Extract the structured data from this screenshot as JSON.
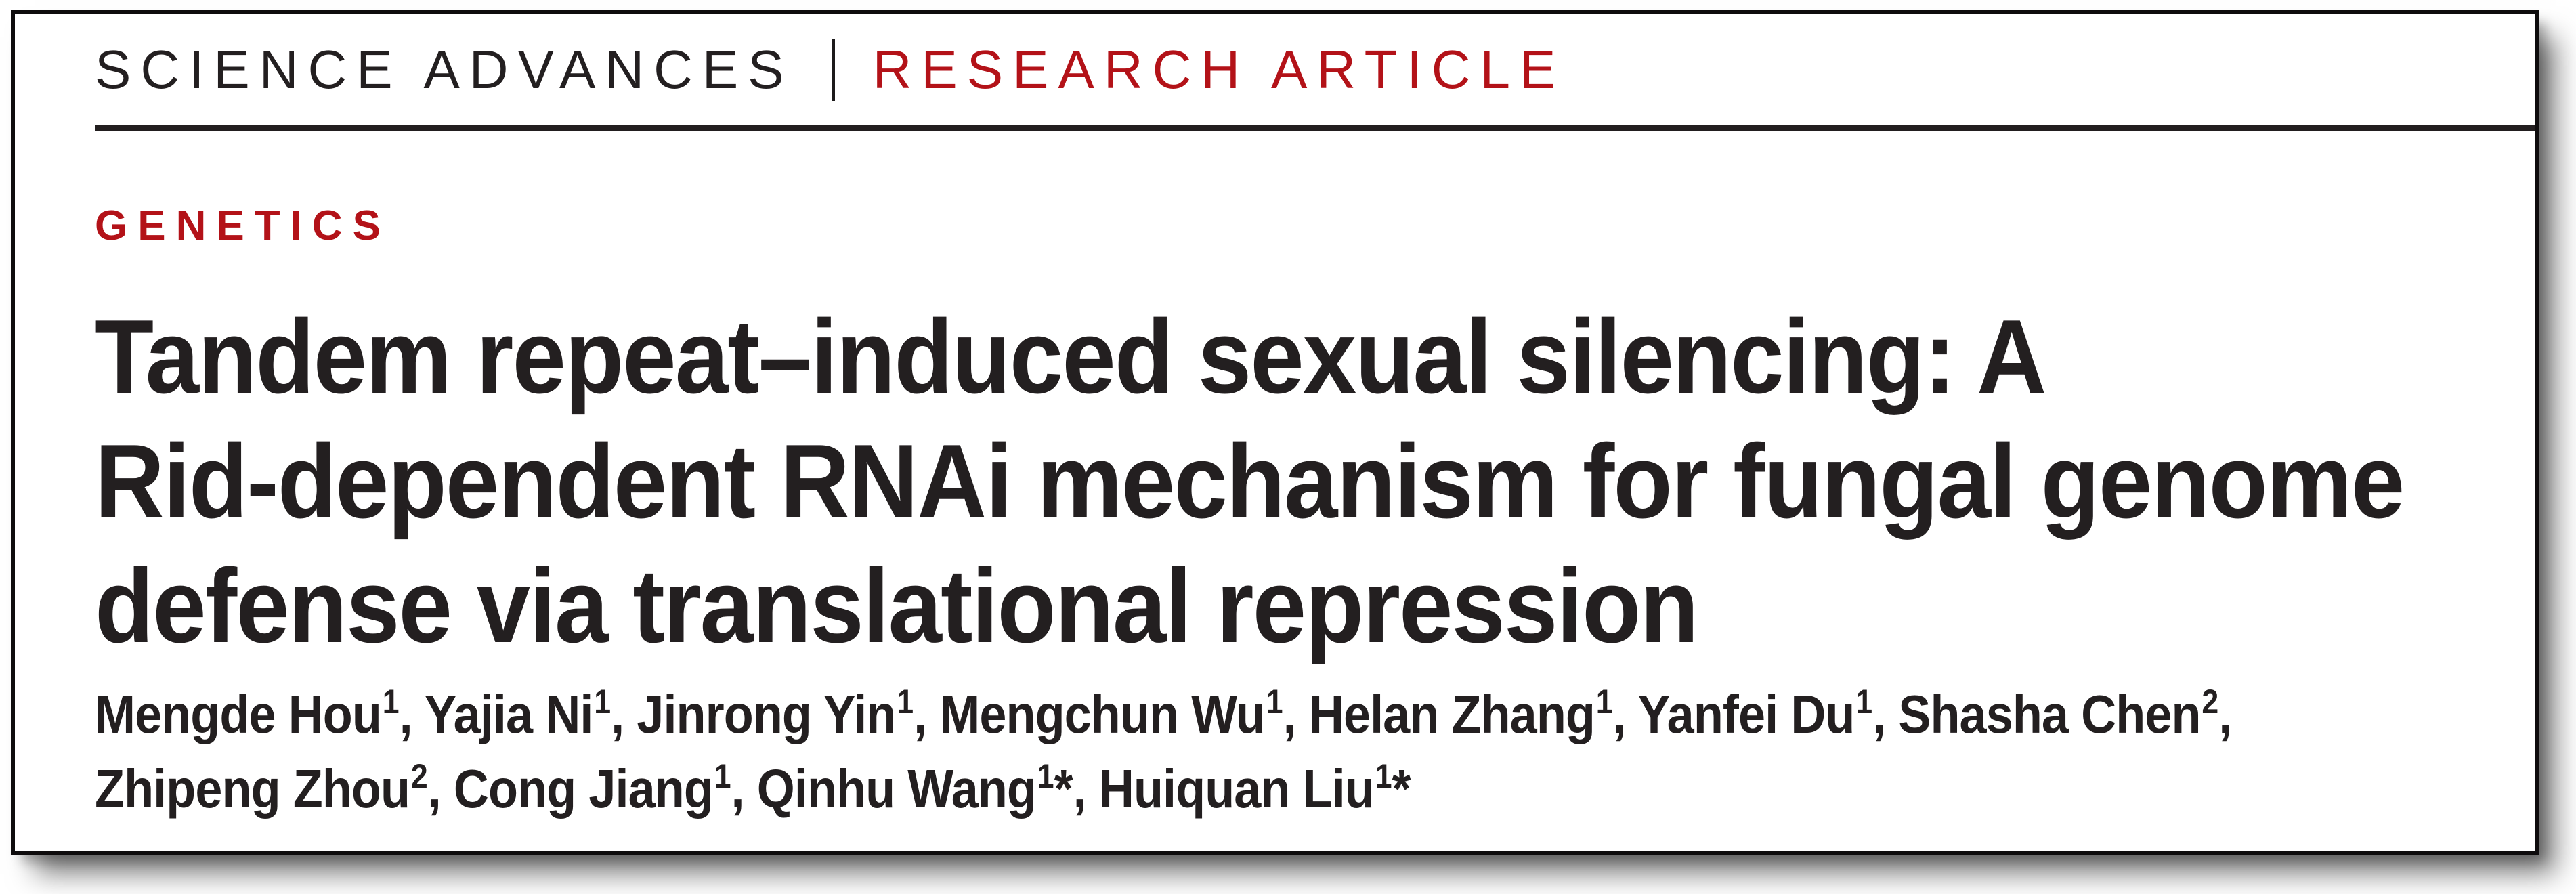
{
  "masthead": {
    "journal": "SCIENCE ADVANCES",
    "separator": "|",
    "article_type": "RESEARCH ARTICLE"
  },
  "section_label": "GENETICS",
  "title": {
    "line1": "Tandem repeat–induced sexual silencing: A",
    "line2": "Rid-dependent RNAi mechanism for fungal genome",
    "line3": "defense via translational repression"
  },
  "author_lines": [
    [
      {
        "name": "Mengde Hou",
        "sup": "1",
        "after": ", "
      },
      {
        "name": "Yajia Ni",
        "sup": "1",
        "after": ", "
      },
      {
        "name": "Jinrong Yin",
        "sup": "1",
        "after": ", "
      },
      {
        "name": "Mengchun Wu",
        "sup": "1",
        "after": ", "
      },
      {
        "name": "Helan Zhang",
        "sup": "1",
        "after": ", "
      },
      {
        "name": "Yanfei Du",
        "sup": "1",
        "after": ", "
      },
      {
        "name": "Shasha Chen",
        "sup": "2",
        "after": ","
      }
    ],
    [
      {
        "name": "Zhipeng Zhou",
        "sup": "2",
        "after": ", "
      },
      {
        "name": "Cong Jiang",
        "sup": "1",
        "after": ", "
      },
      {
        "name": "Qinhu Wang",
        "sup": "1",
        "star": "*",
        "after": ", "
      },
      {
        "name": "Huiquan Liu",
        "sup": "1",
        "star": "*",
        "after": ""
      }
    ]
  ],
  "colors": {
    "accent_red": "#b31218",
    "ink": "#231f20"
  }
}
